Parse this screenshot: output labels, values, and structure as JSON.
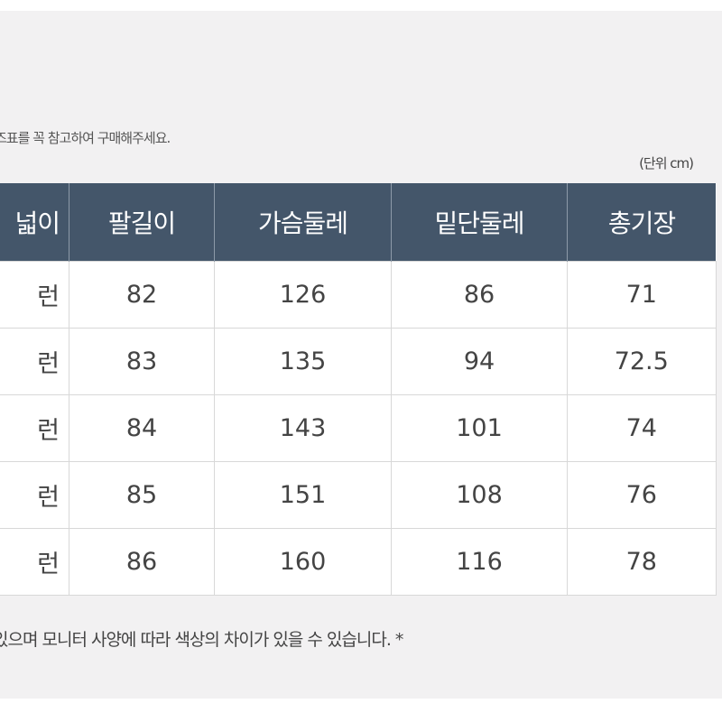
{
  "notice": "즈표를 꼭 참고하여 구매해주세요.",
  "unit_label": "(단위 cm)",
  "table": {
    "headers": [
      "넓이",
      "팔길이",
      "가슴둘레",
      "밑단둘레",
      "총기장"
    ],
    "rows": [
      [
        "런",
        "82",
        "126",
        "86",
        "71"
      ],
      [
        "런",
        "83",
        "135",
        "94",
        "72.5"
      ],
      [
        "런",
        "84",
        "143",
        "101",
        "74"
      ],
      [
        "런",
        "85",
        "151",
        "108",
        "76"
      ],
      [
        "런",
        "86",
        "160",
        "116",
        "78"
      ]
    ]
  },
  "footer": "있으며 모니터 사양에 따라  색상의 차이가 있을 수 있습니다. *",
  "colors": {
    "header_bg": "#44566a",
    "panel_bg": "#f2f1f2"
  }
}
